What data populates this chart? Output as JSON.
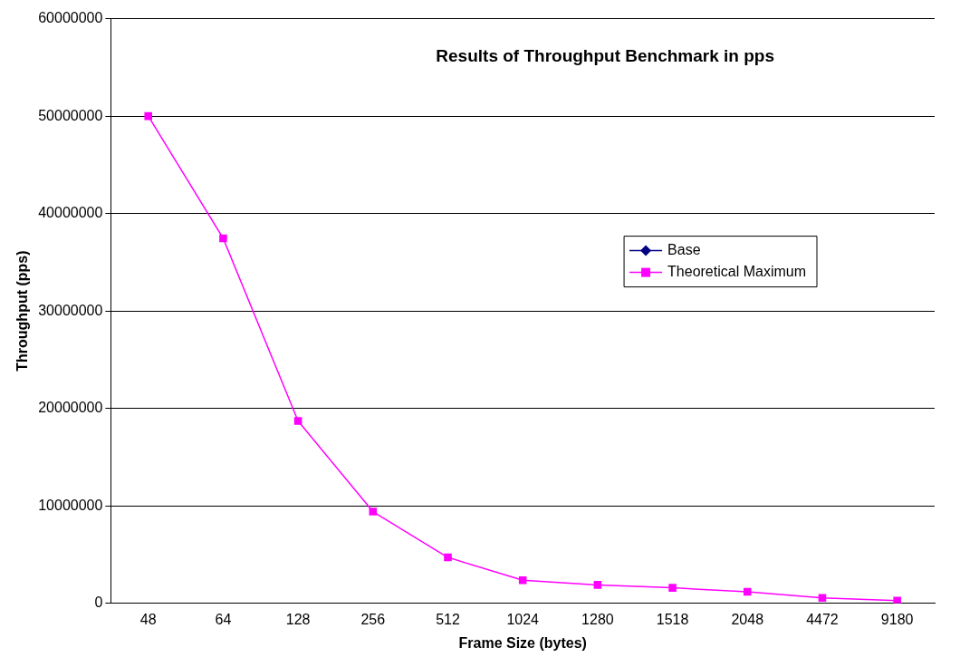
{
  "chart_data": {
    "type": "line",
    "title": "Results of Throughput Benchmark in pps",
    "xlabel": "Frame Size (bytes)",
    "ylabel": "Throughput (pps)",
    "categories": [
      "48",
      "64",
      "128",
      "256",
      "512",
      "1024",
      "1280",
      "1518",
      "2048",
      "4472",
      "9180"
    ],
    "series": [
      {
        "name": "Base",
        "color": "#000080",
        "marker": "diamond",
        "values": [
          null,
          null,
          null,
          null,
          null,
          null,
          null,
          null,
          null,
          null,
          null
        ]
      },
      {
        "name": "Theoretical Maximum",
        "color": "#ff00ff",
        "marker": "square",
        "values": [
          50000000,
          37450000,
          18700000,
          9400000,
          4700000,
          2350000,
          1880000,
          1580000,
          1170000,
          540000,
          260000
        ]
      }
    ],
    "ylim": [
      0,
      60000000
    ],
    "yticks": [
      0,
      10000000,
      20000000,
      30000000,
      40000000,
      50000000,
      60000000
    ],
    "grid": "y",
    "legend": "right",
    "line_style": "solid"
  }
}
